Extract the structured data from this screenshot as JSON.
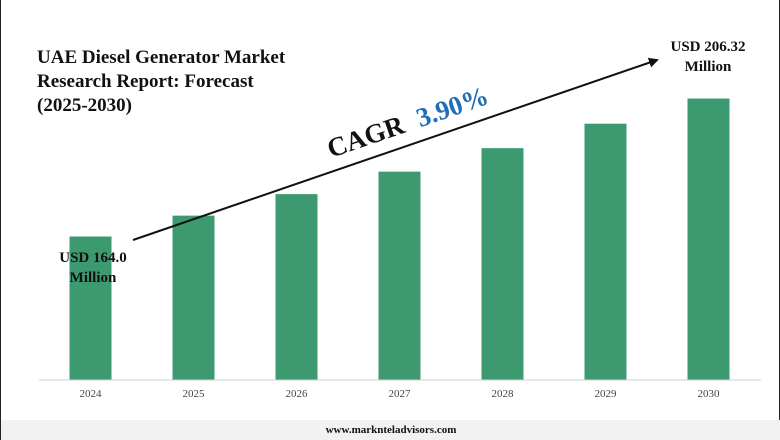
{
  "chart_data": {
    "type": "bar",
    "title": "UAE Diesel Generator Market\nResearch Report: Forecast\n(2025-2030)",
    "categories": [
      "2024",
      "2025",
      "2026",
      "2027",
      "2028",
      "2029",
      "2030"
    ],
    "values": [
      164.0,
      170.4,
      177.0,
      183.9,
      191.1,
      198.6,
      206.32
    ],
    "units": "USD Million",
    "ylim": [
      120,
      212
    ],
    "grid": false,
    "legend": "none",
    "bar_color": "#3d9970",
    "annotations": {
      "start_line1": "USD 164.0",
      "start_line2": "Million",
      "end_line1": "USD 206.32",
      "end_line2": "Million",
      "cagr_label": "CAGR",
      "cagr_value": "3.90%"
    }
  },
  "footer": {
    "source": "www.marknteladvisors.com"
  }
}
